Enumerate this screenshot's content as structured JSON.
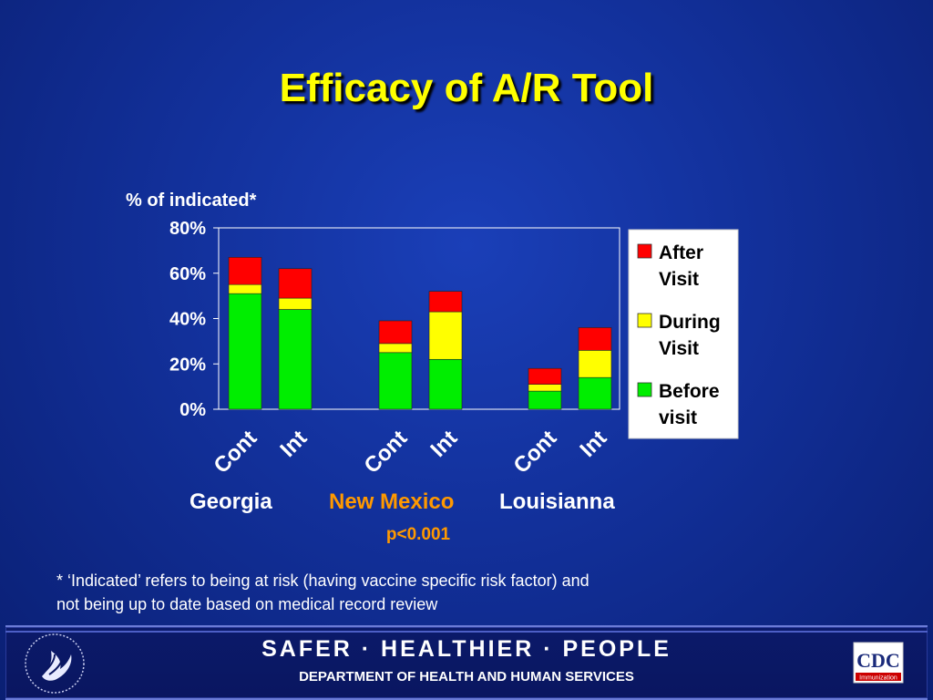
{
  "slide": {
    "title": "Efficacy of A/R Tool",
    "footnote_line1": "* ‘Indicated’ refers to being at risk (having vaccine specific risk factor) and",
    "footnote_line2": "not being up to date based on medical record review"
  },
  "footer": {
    "tagline": "SAFER · HEALTHIER · PEOPLE",
    "department": "DEPARTMENT OF HEALTH AND HUMAN SERVICES",
    "cdc_logo_text": "CDC",
    "cdc_logo_subtext": "Immunization"
  },
  "colors": {
    "before": "#00ee00",
    "during": "#ffff00",
    "after": "#ff0000",
    "background": "#12309a",
    "title": "#ffff00",
    "highlight": "#ff9900"
  },
  "chart_data": {
    "type": "bar",
    "stacked": true,
    "ylabel": "% of indicated*",
    "ylim": [
      0,
      80
    ],
    "yticks": [
      "0%",
      "20%",
      "40%",
      "60%",
      "80%"
    ],
    "categories": [
      "Cont",
      "Int",
      "Cont",
      "Int",
      "Cont",
      "Int"
    ],
    "groups": [
      {
        "label": "Georgia",
        "highlight": false
      },
      {
        "label": "New Mexico",
        "highlight": true
      },
      {
        "label": "Louisianna",
        "highlight": false
      }
    ],
    "series": [
      {
        "name": "Before visit",
        "legend_line1": "Before",
        "legend_line2": "visit",
        "color": "#00ee00",
        "values": [
          51,
          44,
          25,
          22,
          8,
          14
        ]
      },
      {
        "name": "During Visit",
        "legend_line1": "During",
        "legend_line2": "Visit",
        "color": "#ffff00",
        "values": [
          4,
          5,
          4,
          21,
          3,
          12
        ]
      },
      {
        "name": "After Visit",
        "legend_line1": "After",
        "legend_line2": "Visit",
        "color": "#ff0000",
        "values": [
          12,
          13,
          10,
          9,
          7,
          10
        ]
      }
    ],
    "annotation": "p<0.001",
    "legend_position": "right",
    "grid": false
  }
}
